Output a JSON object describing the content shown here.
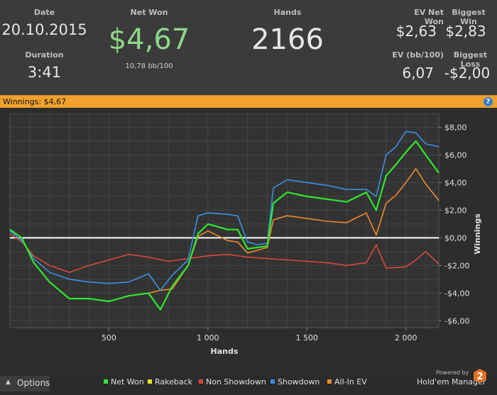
{
  "stats": {
    "date_label": "Date",
    "date_value": "20.10.2015",
    "duration_label": "Duration",
    "duration_value": "3:41",
    "net_won_label": "Net Won",
    "net_won_value": "$4,67",
    "net_won_sub": "10,78 bb/100",
    "hands_label": "Hands",
    "hands_value": "2166",
    "ev_net_won_label": "EV Net Won",
    "ev_net_won_value": "$2,63",
    "biggest_win_label": "Biggest Win",
    "biggest_win_value": "$2,83",
    "ev_bb_label": "EV (bb/100)",
    "ev_bb_value": "6,07",
    "biggest_loss_label": "Biggest Loss",
    "biggest_loss_value": "-$2,00"
  },
  "banner": {
    "text": "Winnings: $4,67",
    "help": "?"
  },
  "colors": {
    "net_won": "#2ee82e",
    "rakeback": "#e8e02a",
    "non_showdown": "#d9473c",
    "showdown": "#3b8fe0",
    "all_in_ev": "#ef8a2c",
    "accent": "#f1a22c",
    "value_green": "#8fd68a"
  },
  "chart_data": {
    "type": "line",
    "xlabel": "Hands",
    "ylabel": "Winnings",
    "xlim": [
      0,
      2166
    ],
    "ylim": [
      -6.5,
      9
    ],
    "xticks": [
      500,
      1000,
      1500,
      2000
    ],
    "xtick_labels": [
      "500",
      "1 000",
      "1 500",
      "2 000"
    ],
    "yticks": [
      8,
      6,
      4,
      2,
      0,
      -2,
      -4,
      -6
    ],
    "ytick_labels": [
      "$8,00",
      "$6,00",
      "$4,00",
      "$2,00",
      "$0,00",
      "-$2,00",
      "-$4,00",
      "-$6,00"
    ],
    "grid": true,
    "legend_position": "bottom",
    "series": [
      {
        "name": "Net Won",
        "color": "#2ee82e",
        "x": [
          0,
          60,
          120,
          200,
          300,
          400,
          500,
          600,
          700,
          760,
          820,
          900,
          950,
          1000,
          1100,
          1150,
          1200,
          1250,
          1300,
          1330,
          1400,
          1500,
          1600,
          1700,
          1800,
          1850,
          1900,
          1950,
          2000,
          2050,
          2100,
          2166
        ],
        "y": [
          0.6,
          0,
          -1.8,
          -3.2,
          -4.4,
          -4.4,
          -4.6,
          -4.2,
          -4,
          -5.2,
          -3.5,
          -2,
          0.3,
          1,
          0.6,
          0.6,
          -0.8,
          -0.7,
          -0.6,
          2.5,
          3.3,
          3,
          2.8,
          2.6,
          3.3,
          2,
          4.5,
          5.3,
          6.2,
          7,
          6,
          4.7
        ]
      },
      {
        "name": "Rakeback",
        "color": "#e8e02a",
        "x": [
          0,
          2166
        ],
        "y": [
          0,
          0
        ]
      },
      {
        "name": "Non Showdown",
        "color": "#d9473c",
        "x": [
          0,
          60,
          120,
          200,
          300,
          400,
          500,
          600,
          700,
          800,
          900,
          1000,
          1100,
          1200,
          1300,
          1400,
          1500,
          1600,
          1700,
          1800,
          1850,
          1900,
          2000,
          2050,
          2100,
          2166
        ],
        "y": [
          0.3,
          -0.3,
          -1.3,
          -2,
          -2.5,
          -2,
          -1.6,
          -1.2,
          -1.4,
          -1.7,
          -1.5,
          -1.3,
          -1.2,
          -1.4,
          -1.5,
          -1.6,
          -1.7,
          -1.8,
          -2,
          -1.8,
          -0.5,
          -2.2,
          -2.1,
          -1.6,
          -1,
          -1.9
        ]
      },
      {
        "name": "Showdown",
        "color": "#3b8fe0",
        "x": [
          0,
          60,
          120,
          200,
          300,
          400,
          500,
          600,
          700,
          760,
          820,
          900,
          950,
          1000,
          1100,
          1150,
          1200,
          1250,
          1300,
          1330,
          1400,
          1500,
          1600,
          1700,
          1800,
          1850,
          1900,
          1950,
          2000,
          2050,
          2100,
          2166
        ],
        "y": [
          0.5,
          -0.2,
          -1.5,
          -2.5,
          -3,
          -3.2,
          -3.3,
          -3.2,
          -2.6,
          -3.8,
          -2.7,
          -1.6,
          1.6,
          1.8,
          1.7,
          1.6,
          -0.3,
          -0.5,
          -0.4,
          3.6,
          4.2,
          4,
          3.8,
          3.5,
          3.5,
          3,
          6,
          6.6,
          7.7,
          7.6,
          6.8,
          6.6
        ]
      },
      {
        "name": "All-In EV",
        "color": "#ef8a2c",
        "x": [
          0,
          60,
          120,
          200,
          300,
          400,
          500,
          600,
          700,
          760,
          820,
          900,
          950,
          1000,
          1100,
          1150,
          1200,
          1250,
          1300,
          1330,
          1400,
          1500,
          1600,
          1700,
          1800,
          1850,
          1900,
          1950,
          2000,
          2050,
          2100,
          2166
        ],
        "y": [
          0.6,
          0,
          -1.8,
          -3.2,
          -4.4,
          -4.4,
          -4.6,
          -4.2,
          -4,
          -3.8,
          -3.7,
          -2,
          0.1,
          0.5,
          -0.2,
          -0.3,
          -1.1,
          -0.9,
          -0.7,
          1.3,
          1.6,
          1.4,
          1.2,
          1.1,
          1.8,
          0.2,
          2.5,
          3.1,
          4,
          5,
          3.9,
          2.7
        ]
      }
    ]
  },
  "legend": [
    "Net Won",
    "Rakeback",
    "Non Showdown",
    "Showdown",
    "All-In EV"
  ],
  "footer": {
    "options_label": "Options",
    "powered_by": "Powered by",
    "brand": "Hold'em Manager",
    "brand_badge": "2"
  }
}
